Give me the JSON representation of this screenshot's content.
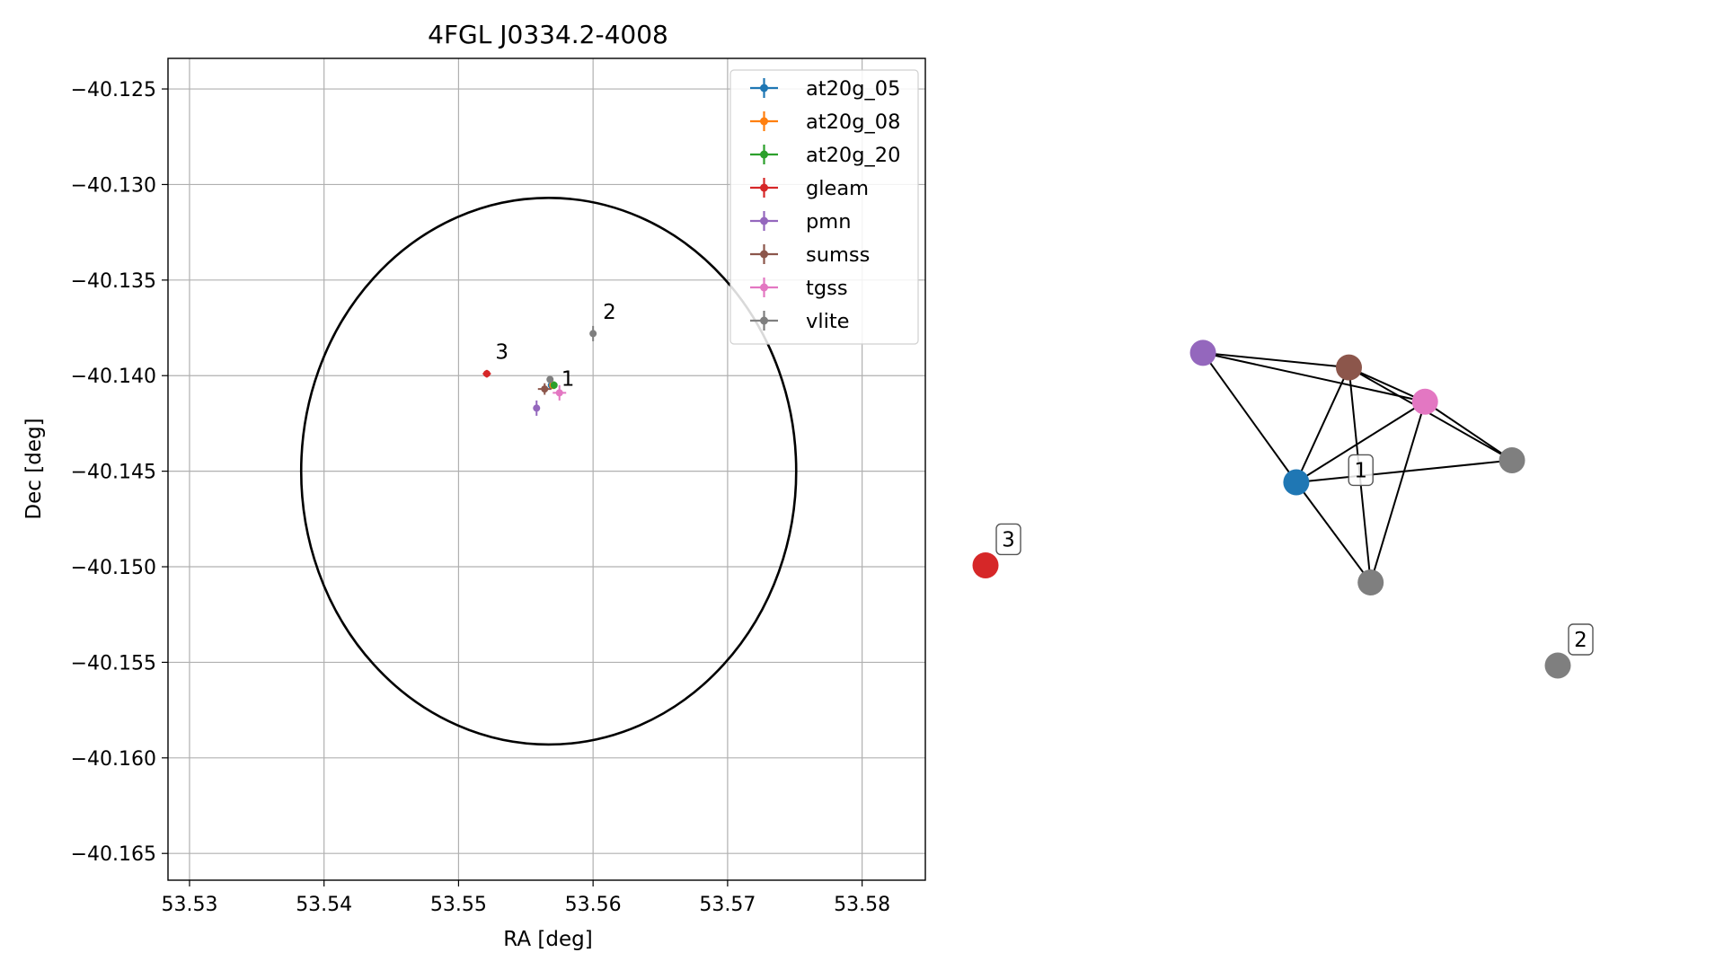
{
  "colors": {
    "at20g_05": "#1f77b4",
    "at20g_08": "#ff7f0e",
    "at20g_20": "#2ca02c",
    "gleam": "#d62728",
    "pmn": "#9467bd",
    "sumss": "#8c564b",
    "tgss": "#e377c2",
    "vlite": "#7f7f7f",
    "grid": "#b0b0b0",
    "ellipse": "#000000"
  },
  "chart_data": [
    {
      "type": "scatter",
      "title": "4FGL J0334.2-4008",
      "xlabel": "RA [deg]",
      "ylabel": "Dec [deg]",
      "xlim": [
        53.5284,
        53.5847
      ],
      "ylim": [
        -40.1664,
        -40.1234
      ],
      "xticks": [
        53.53,
        53.54,
        53.55,
        53.56,
        53.57,
        53.58
      ],
      "xtick_labels": [
        "53.53",
        "53.54",
        "53.55",
        "53.56",
        "53.57",
        "53.58"
      ],
      "yticks": [
        -40.125,
        -40.13,
        -40.135,
        -40.14,
        -40.145,
        -40.15,
        -40.155,
        -40.16,
        -40.165
      ],
      "ytick_labels": [
        "−40.125",
        "−40.130",
        "−40.135",
        "−40.140",
        "−40.145",
        "−40.150",
        "−40.155",
        "−40.160",
        "−40.165"
      ],
      "grid": true,
      "legend_position": "upper-right",
      "ellipse": {
        "center": [
          53.5567,
          -40.145
        ],
        "ra_radius": 0.0184,
        "dec_radius": 0.0143
      },
      "series": [
        {
          "name": "at20g_05",
          "points": [
            {
              "x": 53.5569,
              "y": -40.1405,
              "xerr": 0.0002,
              "yerr": 0.0002
            }
          ]
        },
        {
          "name": "at20g_08",
          "points": [
            {
              "x": 53.557,
              "y": -40.1405,
              "xerr": 0.0002,
              "yerr": 0.0002
            }
          ]
        },
        {
          "name": "at20g_20",
          "points": [
            {
              "x": 53.5571,
              "y": -40.1405,
              "xerr": 0.0002,
              "yerr": 0.0002
            }
          ]
        },
        {
          "name": "gleam",
          "points": [
            {
              "x": 53.5521,
              "y": -40.1399,
              "xerr": 0.0003,
              "yerr": 0.0002
            }
          ]
        },
        {
          "name": "pmn",
          "points": [
            {
              "x": 53.5558,
              "y": -40.1417,
              "xerr": 0.0002,
              "yerr": 0.0004
            }
          ]
        },
        {
          "name": "sumss",
          "points": [
            {
              "x": 53.5564,
              "y": -40.1407,
              "xerr": 0.0005,
              "yerr": 0.0003
            }
          ]
        },
        {
          "name": "tgss",
          "points": [
            {
              "x": 53.5575,
              "y": -40.1409,
              "xerr": 0.0005,
              "yerr": 0.0004
            }
          ]
        },
        {
          "name": "vlite",
          "points": [
            {
              "x": 53.5568,
              "y": -40.1402,
              "xerr": 0.0001,
              "yerr": 0.0001
            },
            {
              "x": 53.56,
              "y": -40.1378,
              "xerr": 0.0001,
              "yerr": 0.0004
            }
          ]
        }
      ],
      "annotations": [
        {
          "text": "1",
          "x": 53.5575,
          "y": -40.1408
        },
        {
          "text": "2",
          "x": 53.5606,
          "y": -40.1373
        },
        {
          "text": "3",
          "x": 53.5526,
          "y": -40.1394
        }
      ]
    },
    {
      "type": "network",
      "nodes": [
        {
          "id": "gleam",
          "color_key": "gleam",
          "x": 0.0,
          "y": 0.795,
          "label": "3"
        },
        {
          "id": "vlite-2",
          "color_key": "vlite",
          "x": 1.0,
          "y": 1.0,
          "label": "2"
        },
        {
          "id": "vlite-1",
          "color_key": "vlite",
          "x": 0.673,
          "y": 0.83
        },
        {
          "id": "at20g",
          "color_key": "at20g_05",
          "x": 0.543,
          "y": 0.625
        },
        {
          "id": "vlite-1b",
          "color_key": "vlite",
          "x": 0.92,
          "y": 0.58
        },
        {
          "id": "tgss",
          "color_key": "tgss",
          "x": 0.768,
          "y": 0.46
        },
        {
          "id": "sumss",
          "color_key": "sumss",
          "x": 0.635,
          "y": 0.39
        },
        {
          "id": "pmn",
          "color_key": "pmn",
          "x": 0.38,
          "y": 0.36
        }
      ],
      "edges": [
        [
          "at20g",
          "vlite-1"
        ],
        [
          "at20g",
          "vlite-1b"
        ],
        [
          "at20g",
          "tgss"
        ],
        [
          "at20g",
          "sumss"
        ],
        [
          "at20g",
          "pmn"
        ],
        [
          "vlite-1",
          "sumss"
        ],
        [
          "vlite-1",
          "tgss"
        ],
        [
          "vlite-1b",
          "tgss"
        ],
        [
          "vlite-1b",
          "sumss"
        ],
        [
          "tgss",
          "sumss"
        ],
        [
          "tgss",
          "pmn"
        ],
        [
          "sumss",
          "pmn"
        ]
      ],
      "cluster_labels": [
        {
          "text": "1",
          "x": 0.655,
          "y": 0.6
        }
      ]
    }
  ]
}
